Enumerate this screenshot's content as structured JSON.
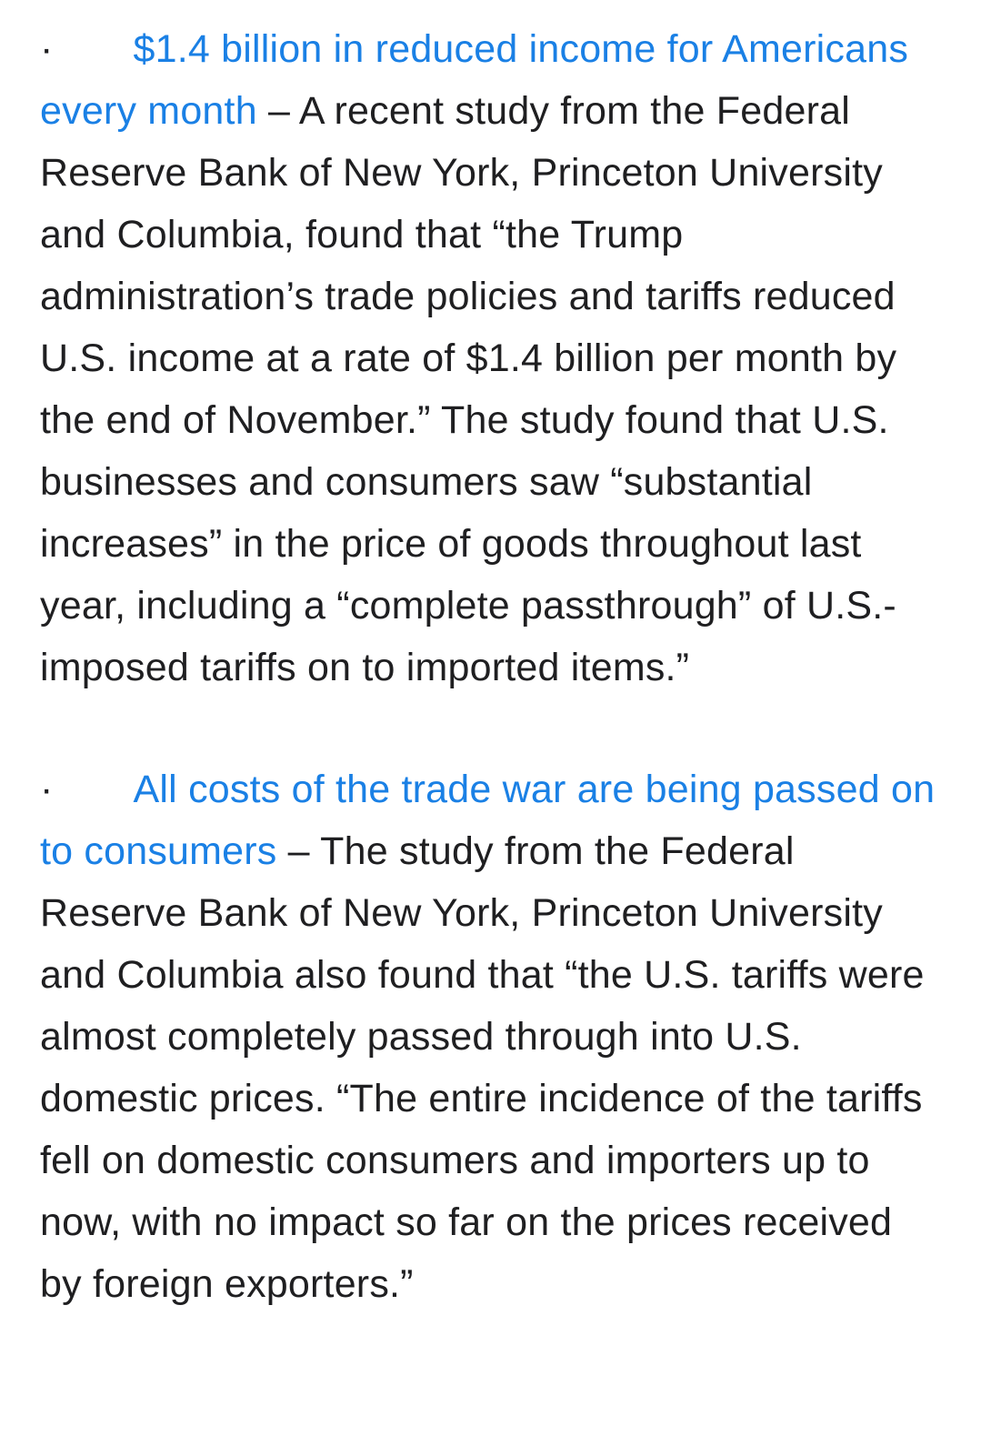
{
  "page": {
    "background_color": "#ffffff",
    "text_color": "#1f1f21",
    "link_color": "#1a80e5"
  },
  "bullets": [
    {
      "marker": "·",
      "link": "$1.4 billion in reduced income for Americans every month",
      "separator": " – ",
      "body": "A recent study from the Federal Reserve Bank of New York, Princeton University and Columbia, found that “the Trump administration’s trade policies and tariffs reduced U.S. income at a rate of $1.4 billion per month by the end of November.” The study found that U.S. businesses and consumers saw “substantial increases” in the price of goods throughout last year, including a “complete passthrough” of U.S.-imposed tariffs on to imported items.”"
    },
    {
      "marker": "·",
      "link": "All costs of the trade war are being passed on to consumers",
      "separator": " – ",
      "body": "The study from the Federal Reserve Bank of New York, Princeton University and Columbia also found that “the U.S. tariffs were almost completely passed through into U.S. domestic prices. “The entire incidence of the tariffs fell on domestic consumers and importers up to now, with no impact so far on the prices received by foreign exporters.”"
    }
  ]
}
